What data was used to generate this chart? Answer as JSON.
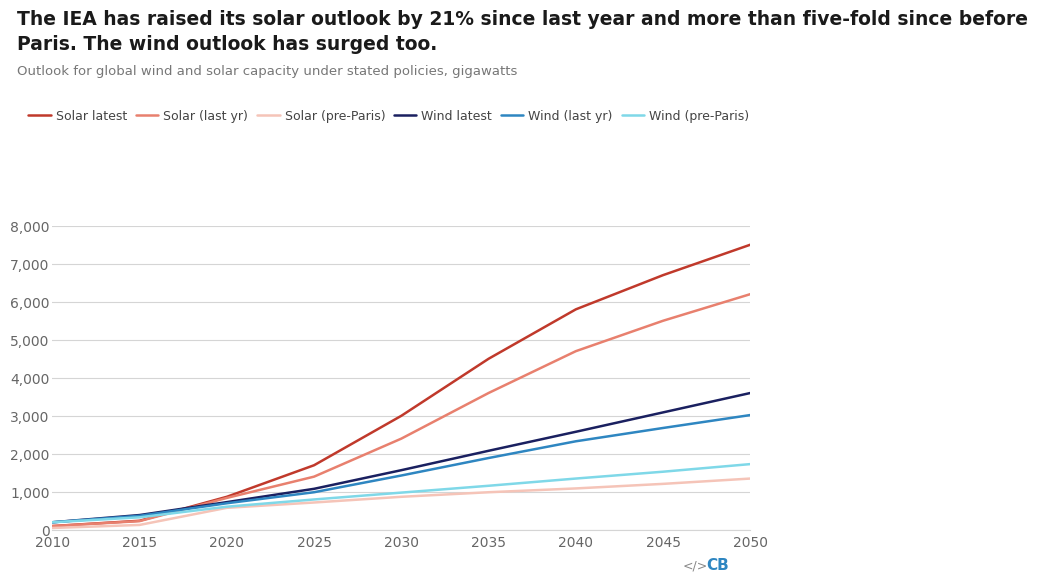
{
  "title_line1": "The IEA has raised its solar outlook by 21% since last year and more than five-fold since before",
  "title_line2": "Paris. The wind outlook has surged too.",
  "subtitle": "Outlook for global wind and solar capacity under stated policies, gigawatts",
  "years": [
    2010,
    2015,
    2020,
    2025,
    2030,
    2035,
    2040,
    2045,
    2050
  ],
  "solar_latest": [
    100,
    240,
    870,
    1700,
    3000,
    4500,
    5800,
    6700,
    7500
  ],
  "solar_last_yr": [
    100,
    230,
    840,
    1400,
    2400,
    3600,
    4700,
    5500,
    6200
  ],
  "solar_pre_paris": [
    50,
    130,
    580,
    720,
    870,
    990,
    1090,
    1210,
    1350
  ],
  "wind_latest": [
    200,
    390,
    730,
    1080,
    1570,
    2080,
    2580,
    3090,
    3600
  ],
  "wind_last_yr": [
    200,
    370,
    700,
    990,
    1430,
    1890,
    2330,
    2680,
    3020
  ],
  "wind_pre_paris": [
    200,
    330,
    610,
    800,
    980,
    1160,
    1350,
    1530,
    1730
  ],
  "color_solar_latest": "#c0392b",
  "color_solar_last_yr": "#e8806e",
  "color_solar_pre_paris": "#f5c4b8",
  "color_wind_latest": "#1a2060",
  "color_wind_last_yr": "#2e86c1",
  "color_wind_pre_paris": "#7fd8e8",
  "legend_labels": [
    "Solar latest",
    "Solar (last yr)",
    "Solar (pre-Paris)",
    "Wind latest",
    "Wind (last yr)",
    "Wind (pre-Paris)"
  ],
  "ylim": [
    0,
    8000
  ],
  "yticks": [
    0,
    1000,
    2000,
    3000,
    4000,
    5000,
    6000,
    7000,
    8000
  ],
  "xlim": [
    2010,
    2050
  ],
  "xticks": [
    2010,
    2015,
    2020,
    2025,
    2030,
    2035,
    2040,
    2045,
    2050
  ],
  "bg_color": "#ffffff",
  "grid_color": "#d5d5d5",
  "title_fontsize": 13.5,
  "subtitle_fontsize": 9.5,
  "tick_fontsize": 10,
  "legend_fontsize": 9,
  "line_width": 1.8
}
